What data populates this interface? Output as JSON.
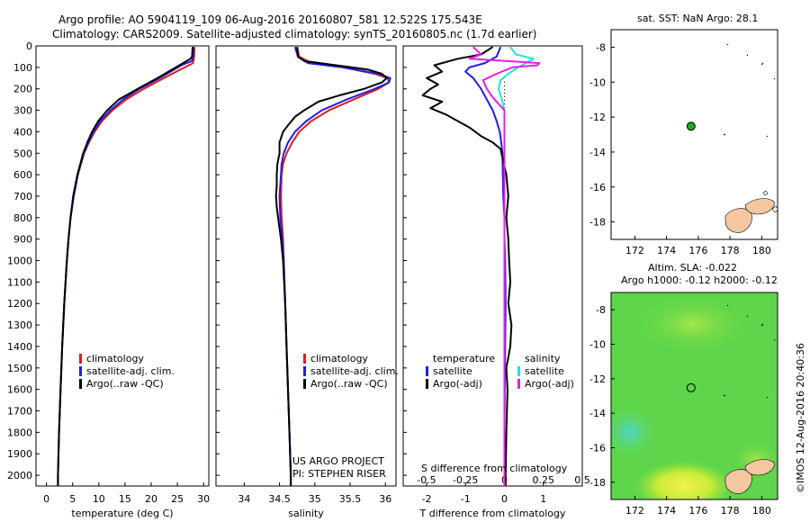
{
  "header": {
    "line1": "Argo profile: AO 5904119_109 06-Aug-2016 20160807_581 12.522S 175.543E",
    "line2": "Climatology: CARS2009. Satellite-adjusted climatology: synTS_20160805.nc (1.7d earlier)"
  },
  "colors": {
    "climatology": "#e41a1c",
    "satellite": "#1f1fe6",
    "argo": "#000000",
    "satellite_salinity": "#22e0e0",
    "argo_salinity": "#e61ee6",
    "island_fill": "#f5c7a0",
    "marker": "#22aa22"
  },
  "chart_data": [
    {
      "type": "line",
      "title": "",
      "xlabel": "temperature (deg C)",
      "ylabel": "",
      "xlim": [
        -2,
        31
      ],
      "ylim": [
        2050,
        0
      ],
      "x_ticks": [
        "0",
        "5",
        "10",
        "15",
        "20",
        "25",
        "30"
      ],
      "y_ticks": [
        "0",
        "100",
        "200",
        "300",
        "400",
        "500",
        "600",
        "700",
        "800",
        "900",
        "1000",
        "1100",
        "1200",
        "1300",
        "1400",
        "1500",
        "1600",
        "1700",
        "1800",
        "1900",
        "2000"
      ],
      "legend": [
        "climatology",
        "satellite-adj. clim.",
        "Argo(..raw -QC)"
      ],
      "legend_position": "lower-center",
      "series": [
        {
          "name": "climatology",
          "depth": [
            5,
            50,
            80,
            100,
            150,
            200,
            250,
            300,
            350,
            400,
            450,
            500,
            600,
            700,
            800,
            900,
            1000,
            1200,
            1400,
            1600,
            1800,
            2000,
            2050
          ],
          "values": [
            28.3,
            28.2,
            28,
            26.4,
            22.4,
            18.6,
            15.2,
            12.6,
            10.6,
            9.2,
            8.1,
            7.2,
            6.0,
            5.2,
            4.6,
            4.2,
            3.9,
            3.4,
            3.0,
            2.7,
            2.4,
            2.2,
            2.2
          ]
        },
        {
          "name": "satellite-adj. clim.",
          "depth": [
            5,
            50,
            70,
            90,
            150,
            200,
            250,
            300,
            350,
            400,
            450,
            500,
            600,
            700,
            800,
            900,
            1000,
            1200,
            1400,
            1600,
            1800,
            2000,
            2050
          ],
          "values": [
            28.1,
            28.0,
            27.8,
            25.8,
            21.6,
            17.8,
            14.6,
            12.2,
            10.3,
            9.0,
            8.0,
            7.1,
            6.0,
            5.2,
            4.6,
            4.2,
            3.9,
            3.4,
            3.0,
            2.7,
            2.4,
            2.2,
            2.2
          ]
        },
        {
          "name": "Argo(..raw -QC)",
          "depth": [
            5,
            50,
            60,
            90,
            150,
            200,
            250,
            300,
            350,
            400,
            450,
            500,
            600,
            700,
            800,
            900,
            1000,
            1200,
            1400,
            1600,
            1800,
            2000,
            2050
          ],
          "values": [
            27.9,
            27.8,
            27.5,
            25.4,
            21.2,
            17.4,
            13.8,
            11.6,
            9.9,
            8.7,
            7.8,
            7.0,
            5.9,
            5.1,
            4.6,
            4.2,
            3.9,
            3.4,
            3.0,
            2.7,
            2.4,
            2.2,
            2.2
          ]
        }
      ]
    },
    {
      "type": "line",
      "title": "",
      "xlabel": "salinity",
      "xlim": [
        33.6,
        36.15
      ],
      "ylim": [
        2050,
        0
      ],
      "x_ticks": [
        "34",
        "34.5",
        "35",
        "35.5",
        "36"
      ],
      "legend": [
        "climatology",
        "satellite-adj. clim.",
        "Argo(..raw -QC)"
      ],
      "annotation": [
        "US ARGO PROJECT",
        "PI: STEPHEN RISER"
      ],
      "series": [
        {
          "name": "climatology",
          "depth": [
            5,
            50,
            80,
            100,
            130,
            150,
            170,
            200,
            250,
            300,
            350,
            400,
            450,
            500,
            550,
            600,
            700,
            800,
            900,
            1000,
            1200,
            1400,
            1600,
            1800,
            2000,
            2050
          ],
          "values": [
            34.75,
            34.78,
            34.95,
            35.4,
            35.85,
            36.03,
            36.05,
            35.9,
            35.55,
            35.2,
            34.95,
            34.78,
            34.68,
            34.6,
            34.55,
            34.53,
            34.52,
            34.53,
            34.55,
            34.56,
            34.58,
            34.6,
            34.62,
            34.64,
            34.66,
            34.66
          ]
        },
        {
          "name": "satellite-adj. clim.",
          "depth": [
            5,
            50,
            80,
            100,
            130,
            150,
            170,
            200,
            250,
            300,
            350,
            400,
            450,
            500,
            550,
            600,
            700,
            800,
            900,
            1000,
            1200,
            1400,
            1600,
            1800,
            2000,
            2050
          ],
          "values": [
            34.72,
            34.76,
            34.9,
            35.4,
            35.9,
            36.07,
            36.05,
            35.85,
            35.45,
            35.1,
            34.88,
            34.72,
            34.62,
            34.56,
            34.53,
            34.52,
            34.5,
            34.51,
            34.54,
            34.56,
            34.58,
            34.6,
            34.62,
            34.64,
            34.66,
            34.66
          ]
        },
        {
          "name": "Argo(..raw -QC)",
          "depth": [
            5,
            50,
            70,
            90,
            110,
            130,
            150,
            170,
            200,
            230,
            260,
            300,
            330,
            370,
            400,
            450,
            500,
            550,
            600,
            650,
            700,
            750,
            800,
            900,
            1000,
            1200,
            1400,
            1600,
            1800,
            2000,
            2050
          ],
          "values": [
            34.75,
            34.76,
            34.85,
            35.3,
            35.75,
            35.95,
            36.02,
            35.95,
            35.7,
            35.35,
            35.05,
            34.85,
            34.72,
            34.62,
            34.55,
            34.5,
            34.5,
            34.47,
            34.46,
            34.46,
            34.45,
            34.46,
            34.48,
            34.52,
            34.55,
            34.58,
            34.6,
            34.62,
            34.64,
            34.66,
            34.66
          ]
        }
      ]
    },
    {
      "type": "line",
      "title": "",
      "xlabel": "T difference from climatology",
      "xlabel_top": "S difference from climatology",
      "xlim": [
        -2.6,
        2.0
      ],
      "ylim": [
        2050,
        0
      ],
      "x_ticks": [
        "-2",
        "-1",
        "0",
        "1"
      ],
      "x_ticks_top": [
        "-0.5",
        "-0.25",
        "0",
        "0.25",
        "0.5"
      ],
      "legend_headers": [
        "temperature",
        "salinity"
      ],
      "legend": [
        "satellite",
        "Argo(-adj)",
        "satellite",
        "Argo(-adj)"
      ],
      "series": [
        {
          "name": "temperature satellite",
          "depth": [
            5,
            50,
            80,
            100,
            120,
            150,
            200,
            250,
            300,
            350,
            400,
            450,
            500,
            600,
            700,
            800,
            900,
            1000,
            1200,
            1400,
            1600,
            1800,
            2000,
            2050
          ],
          "values": [
            -0.1,
            -0.2,
            -0.5,
            -0.9,
            -1.0,
            -0.8,
            -0.6,
            -0.45,
            -0.3,
            -0.2,
            -0.12,
            -0.08,
            -0.05,
            -0.04,
            -0.03,
            0.0,
            0.0,
            0.02,
            0.03,
            0.02,
            0.01,
            0.0,
            0.0,
            0.0
          ]
        },
        {
          "name": "temperature Argo(-adj)",
          "depth": [
            5,
            40,
            60,
            90,
            120,
            150,
            180,
            200,
            230,
            260,
            290,
            320,
            350,
            380,
            420,
            450,
            480,
            520,
            560,
            600,
            700,
            800,
            900,
            1000,
            1100,
            1200,
            1300,
            1400,
            1500,
            1600,
            1800,
            2000,
            2050
          ],
          "values": [
            -0.3,
            -0.6,
            -1.2,
            -1.8,
            -1.6,
            -2.0,
            -1.7,
            -1.9,
            -2.1,
            -1.6,
            -1.9,
            -1.5,
            -1.2,
            -0.9,
            -0.6,
            -0.3,
            -0.1,
            -0.05,
            0.0,
            0.05,
            0.1,
            0.05,
            0.1,
            0.12,
            0.15,
            0.1,
            0.18,
            0.15,
            0.05,
            0.08,
            0.05,
            0.03,
            0.03
          ]
        },
        {
          "name": "salinity satellite",
          "depth": [
            5,
            40,
            60,
            80,
            100,
            130,
            160,
            200,
            260,
            300,
            400,
            500,
            600,
            800,
            1000,
            1200,
            1400,
            1600,
            1800,
            2000,
            2050
          ],
          "values": [
            0.15,
            0.3,
            0.75,
            0.55,
            0.35,
            0.1,
            -0.1,
            -0.15,
            -0.05,
            0.0,
            0.0,
            0.0,
            0.0,
            0.0,
            0.0,
            0.0,
            0.0,
            0.0,
            0.0,
            0.0,
            0.0
          ]
        },
        {
          "name": "salinity Argo(-adj)",
          "depth": [
            5,
            40,
            60,
            80,
            90,
            100,
            130,
            160,
            200,
            240,
            280,
            300,
            350,
            400,
            500,
            600,
            800,
            1000,
            1200,
            1400,
            1600,
            1800,
            2000,
            2050
          ],
          "values": [
            -0.8,
            -0.6,
            -0.9,
            0.9,
            0.85,
            0.2,
            -0.2,
            -0.55,
            -0.45,
            -0.3,
            -0.1,
            0.0,
            0.0,
            0.0,
            0.0,
            0.0,
            0.0,
            0.0,
            0.0,
            0.0,
            0.0,
            0.0,
            0.0,
            0.0
          ]
        }
      ]
    }
  ],
  "map_top": {
    "title": "sat. SST: NaN Argo: 28.1",
    "x_ticks": [
      "172",
      "174",
      "176",
      "178",
      "180"
    ],
    "y_ticks": [
      "-8",
      "-10",
      "-12",
      "-14",
      "-16",
      "-18"
    ],
    "xlim": [
      170.5,
      181
    ],
    "ylim": [
      -7,
      -19
    ],
    "argo_position": [
      175.543,
      -12.522
    ]
  },
  "map_bottom": {
    "title1": "Altim. SLA: -0.022",
    "title2": "Argo h1000: -0.12 h2000: -0.12",
    "x_ticks": [
      "172",
      "174",
      "176",
      "178",
      "180"
    ],
    "y_ticks": [
      "-8",
      "-10",
      "-12",
      "-14",
      "-16",
      "-18"
    ],
    "xlim": [
      170.5,
      181
    ],
    "ylim": [
      -7,
      -19
    ],
    "argo_position": [
      175.543,
      -12.522
    ]
  },
  "footer": {
    "credit": "©IMOS 12-Aug-2016 20:40:36"
  }
}
